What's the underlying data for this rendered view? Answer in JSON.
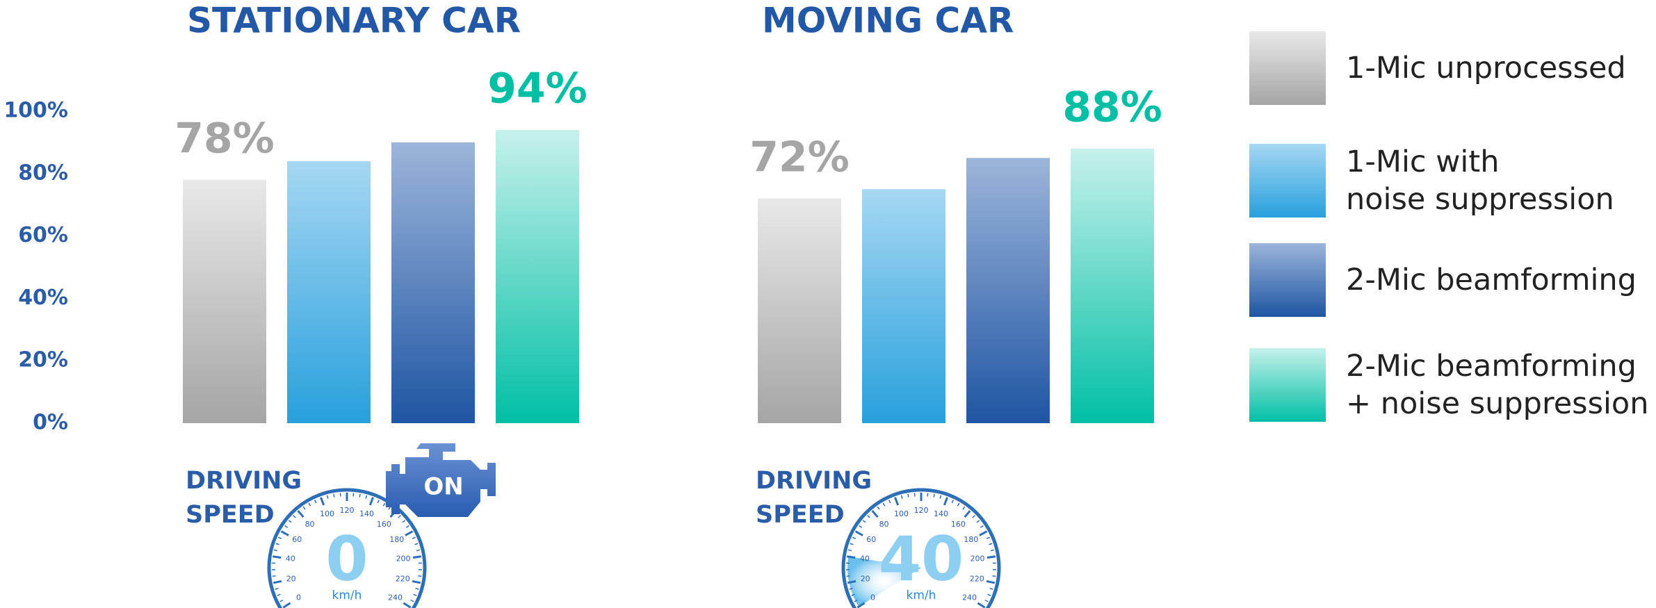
{
  "chart_data": {
    "type": "bar",
    "categories": [
      "STATIONARY CAR",
      "MOVING CAR"
    ],
    "series": [
      {
        "name": "1-Mic unprocessed",
        "colors": [
          "#e8e8e8",
          "#a5a5a5"
        ],
        "values": [
          78,
          72
        ],
        "value_labels": [
          "78%",
          "72%"
        ]
      },
      {
        "name": "1-Mic with\nnoise suppression",
        "colors": [
          "#a6d7f3",
          "#27a0dc"
        ],
        "values": [
          84,
          75
        ]
      },
      {
        "name": "2-Mic beamforming",
        "colors": [
          "#9cb5da",
          "#1f55a3"
        ],
        "values": [
          90,
          85
        ]
      },
      {
        "name": "2-Mic beamforming\n+ noise suppression",
        "colors": [
          "#c6f1eb",
          "#00bfa5"
        ],
        "values": [
          94,
          88
        ],
        "value_labels": [
          "94%",
          "88%"
        ]
      }
    ],
    "ylim": [
      0,
      100
    ],
    "yticks": [
      {
        "value": 0,
        "label": "0%"
      },
      {
        "value": 20,
        "label": "20%"
      },
      {
        "value": 40,
        "label": "40%"
      },
      {
        "value": 60,
        "label": "60%"
      },
      {
        "value": 80,
        "label": "80%"
      },
      {
        "value": 100,
        "label": "100%"
      }
    ]
  },
  "gauges": [
    {
      "label": "DRIVING\nSPEED",
      "value": 0,
      "unit": "km/h",
      "range": [
        0,
        240
      ],
      "ticks": [
        0,
        20,
        40,
        60,
        80,
        100,
        120,
        140,
        160,
        180,
        200,
        220,
        240
      ]
    },
    {
      "label": "DRIVING\nSPEED",
      "value": 40,
      "unit": "km/h",
      "range": [
        0,
        240
      ],
      "ticks": [
        0,
        20,
        40,
        60,
        80,
        100,
        120,
        140,
        160,
        180,
        200,
        220,
        240
      ]
    }
  ],
  "engine_label": "ON"
}
